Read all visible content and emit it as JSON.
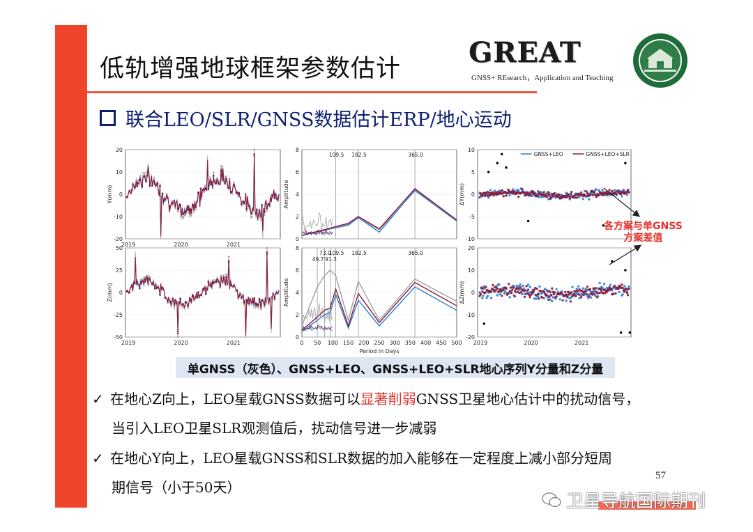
{
  "slide": {
    "title": "低轨增强地球框架参数估计",
    "logo_text": "GREAT",
    "logo_subtitle": "GNSS+ REsearch，Application and Teaching",
    "subtitle": "联合LEO/SLR/GNSS数据估计ERP/地心运动",
    "caption": "单GNSS（灰色）、GNSS+LEO、GNSS+LEO+SLR地心序列Y分量和Z分量",
    "callout_line1": "各方案与单GNSS",
    "callout_line2": "方案差值",
    "bullet1_a": "在地心Z向上，LEO星载GNSS数据可以",
    "bullet1_highlight": "显著削弱",
    "bullet1_b": "GNSS卫星地心估计中的扰动信号，",
    "bullet1_line2": "当引入LEO卫星SLR观测值后，扰动信号进一步减弱",
    "bullet2_line1": "在地心Y向上，LEO星载GNSS和SLR数据的加入能够在一定程度上减小部分短周",
    "bullet2_line2": "期信号（小于50天）",
    "check": "✓",
    "page_number": "57",
    "watermark": "卫星导航国际期刊"
  },
  "colors": {
    "accent": "#f0452b",
    "navy": "#0c1f6e",
    "gnss_leo": "#2a7fd4",
    "gnss_leo_slr": "#8b1a3a",
    "gnss": "#a0a0a0",
    "highlight": "#e4312b"
  },
  "chart_data": [
    {
      "type": "line",
      "id": "time-y",
      "ylabel": "Y(mm)",
      "xlabel": "",
      "xticks": [
        "2019",
        "2020",
        "2021"
      ],
      "yticks": [
        20,
        10,
        0,
        -10,
        -20
      ],
      "ylim": [
        -20,
        20
      ],
      "series": [
        {
          "name": "GNSS",
          "color": "#a0a0a0"
        },
        {
          "name": "GNSS+LEO",
          "color": "#2a7fd4"
        },
        {
          "name": "GNSS+LEO+SLR",
          "color": "#8b1a3a"
        }
      ]
    },
    {
      "type": "line",
      "id": "spec-y",
      "ylabel": "Amplitude",
      "xlabel": "",
      "yticks": [
        8,
        6,
        4,
        2,
        0
      ],
      "ylim": [
        0,
        8
      ],
      "xlim": [
        0,
        500
      ],
      "peaks": [
        "109.5",
        "182.5",
        "365.0"
      ],
      "peak_x": [
        109.5,
        182.5,
        365
      ],
      "series": [
        {
          "name": "GNSS",
          "x": [
            0,
            109.5,
            150,
            182.5,
            250,
            365,
            500
          ],
          "values": [
            0.3,
            1.0,
            1.2,
            1.9,
            0.8,
            4.3,
            1.6
          ]
        },
        {
          "name": "GNSS+LEO",
          "x": [
            0,
            109.5,
            150,
            182.5,
            250,
            365,
            500
          ],
          "values": [
            0.3,
            1.0,
            1.3,
            1.9,
            0.6,
            4.4,
            1.6
          ]
        },
        {
          "name": "GNSS+LEO+SLR",
          "x": [
            0,
            109.5,
            150,
            182.5,
            250,
            365,
            500
          ],
          "values": [
            0.3,
            1.1,
            1.4,
            2.0,
            0.9,
            4.5,
            1.7
          ]
        }
      ]
    },
    {
      "type": "scatter",
      "id": "diff-y",
      "ylabel": "ΔY(mm)",
      "xlabel": "",
      "yticks": [
        10,
        5,
        0,
        -5,
        -10
      ],
      "ylim": [
        -10,
        10
      ],
      "series": [
        {
          "name": "GNSS+LEO",
          "color": "#2a7fd4"
        },
        {
          "name": "GNSS+LEO+SLR",
          "color": "#8b1a3a"
        }
      ]
    },
    {
      "type": "line",
      "id": "time-z",
      "ylabel": "Z(mm)",
      "xlabel": "",
      "xticks": [
        "2019",
        "2020",
        "2021"
      ],
      "yticks": [
        50,
        25,
        0,
        -25,
        -50
      ],
      "ylim": [
        -50,
        50
      ],
      "series": [
        {
          "name": "GNSS",
          "color": "#a0a0a0"
        },
        {
          "name": "GNSS+LEO",
          "color": "#2a7fd4"
        },
        {
          "name": "GNSS+LEO+SLR",
          "color": "#8b1a3a"
        }
      ]
    },
    {
      "type": "line",
      "id": "spec-z",
      "ylabel": "Amplitude",
      "xlabel": "Period in Days",
      "xticks": [
        "0",
        "50",
        "100",
        "150",
        "200",
        "250",
        "300",
        "350",
        "400",
        "450",
        "500"
      ],
      "yticks": [
        8,
        6,
        4,
        2,
        0
      ],
      "ylim": [
        0,
        8
      ],
      "xlim": [
        0,
        500
      ],
      "peaks": [
        "73.0",
        "109.5",
        "49.7",
        "91.3",
        "182.5",
        "365.0"
      ],
      "peak_x": [
        73,
        109.5,
        49.7,
        91.3,
        182.5,
        365
      ],
      "series": [
        {
          "name": "GNSS",
          "x": [
            0,
            49.7,
            73,
            91.3,
            109.5,
            150,
            182.5,
            250,
            365,
            500
          ],
          "values": [
            1.0,
            4.5,
            5.5,
            6.0,
            5.5,
            1.5,
            5.0,
            1.5,
            5.2,
            3.2
          ]
        },
        {
          "name": "GNSS+LEO",
          "x": [
            0,
            49.7,
            73,
            91.3,
            109.5,
            150,
            182.5,
            250,
            365,
            500
          ],
          "values": [
            0.5,
            1.5,
            2.0,
            2.2,
            3.8,
            0.8,
            3.3,
            1.0,
            4.5,
            2.4
          ]
        },
        {
          "name": "GNSS+LEO+SLR",
          "x": [
            0,
            49.7,
            73,
            91.3,
            109.5,
            150,
            182.5,
            250,
            365,
            500
          ],
          "values": [
            0.6,
            1.8,
            2.4,
            2.6,
            4.3,
            1.0,
            3.9,
            1.3,
            4.9,
            2.8
          ]
        }
      ]
    },
    {
      "type": "scatter",
      "id": "diff-z",
      "ylabel": "ΔZ(mm)",
      "xlabel": "",
      "xticks": [
        "2019",
        "2020",
        "2021"
      ],
      "yticks": [
        20,
        10,
        0,
        -10,
        -20
      ],
      "ylim": [
        -20,
        20
      ],
      "series": [
        {
          "name": "GNSS+LEO",
          "color": "#2a7fd4"
        },
        {
          "name": "GNSS+LEO+SLR",
          "color": "#8b1a3a"
        }
      ]
    }
  ],
  "legend": {
    "entries": [
      "GNSS+LEO",
      "GNSS+LEO+SLR"
    ],
    "placement": "top-right"
  }
}
